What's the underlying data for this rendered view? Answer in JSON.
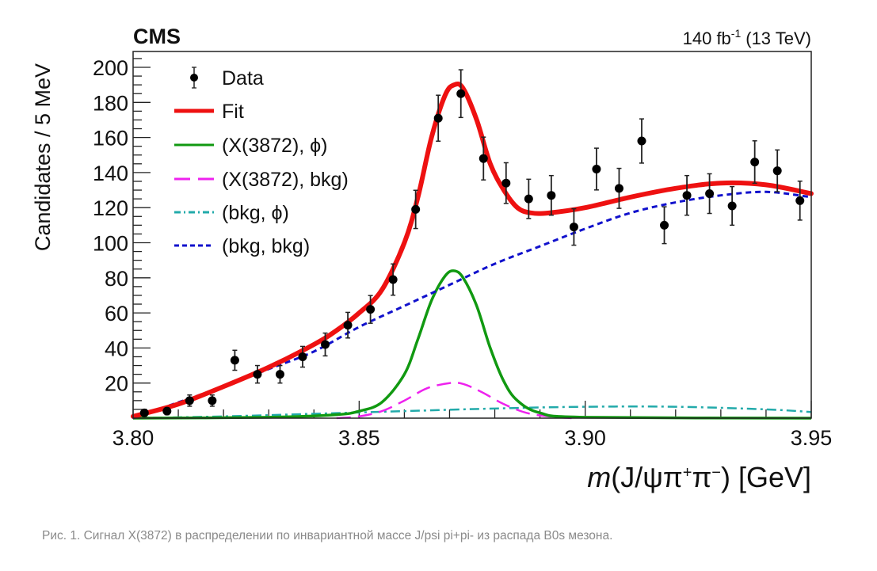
{
  "chart_data": {
    "type": "scatter",
    "experiment_label": "CMS",
    "lumi_label": {
      "value": "140 fb",
      "exponent": "-1",
      "suffix": "(13 TeV)"
    },
    "xlabel": {
      "prefix": "m",
      "body": "(J/ψπ",
      "sup1": "+",
      "mid": "π",
      "sup2": "−",
      "suffix": ") [GeV]"
    },
    "ylabel": "Candidates / 5 MeV",
    "xlim": [
      3.8,
      3.95
    ],
    "ylim": [
      0,
      210
    ],
    "x_ticks": [
      3.8,
      3.85,
      3.9,
      3.95
    ],
    "x_tick_labels": [
      "3.80",
      "3.85",
      "3.90",
      "3.95"
    ],
    "y_ticks": [
      20,
      40,
      60,
      80,
      100,
      120,
      140,
      160,
      180,
      200
    ],
    "y_tick_labels": [
      "20",
      "40",
      "60",
      "80",
      "100",
      "120",
      "140",
      "160",
      "180",
      "200"
    ],
    "grid": false,
    "legend_position": "top-left",
    "legend": [
      {
        "label": "Data",
        "style": "marker",
        "color": "#000000"
      },
      {
        "label": "Fit",
        "style": "solid-thick",
        "color": "#ee1111"
      },
      {
        "label": "(X(3872), ϕ)",
        "style": "solid",
        "color": "#119911"
      },
      {
        "label": "(X(3872), bkg)",
        "style": "long-dash",
        "color": "#ee22ee"
      },
      {
        "label": "(bkg, ϕ)",
        "style": "dash-dot",
        "color": "#22aaaa"
      },
      {
        "label": "(bkg, bkg)",
        "style": "short-dash",
        "color": "#1111cc"
      }
    ],
    "data": {
      "x": [
        3.8025,
        3.8075,
        3.8125,
        3.8175,
        3.8225,
        3.8275,
        3.8325,
        3.8375,
        3.8425,
        3.8475,
        3.8525,
        3.8575,
        3.8625,
        3.8675,
        3.8725,
        3.8775,
        3.8825,
        3.8875,
        3.8925,
        3.8975,
        3.9025,
        3.9075,
        3.9125,
        3.9175,
        3.9225,
        3.9275,
        3.9325,
        3.9375,
        3.9425,
        3.9475
      ],
      "y": [
        3,
        4,
        10,
        10,
        33,
        25,
        25,
        35,
        42,
        53,
        62,
        79,
        119,
        171,
        185,
        148,
        134,
        125,
        127,
        109,
        142,
        131,
        158,
        110,
        127,
        128,
        121,
        146,
        141,
        124
      ],
      "yerr": [
        2,
        2,
        3.2,
        3.2,
        5.7,
        5,
        5,
        5.9,
        6.5,
        7.3,
        7.9,
        8.9,
        10.9,
        13.1,
        13.6,
        12.2,
        11.6,
        11.2,
        11.3,
        10.4,
        11.9,
        11.4,
        12.6,
        10.5,
        11.3,
        11.3,
        11,
        12.1,
        11.9,
        11.1
      ]
    },
    "components": {
      "fit": {
        "x": [
          3.8,
          3.81,
          3.82,
          3.83,
          3.84,
          3.845,
          3.85,
          3.855,
          3.86,
          3.863,
          3.866,
          3.869,
          3.871,
          3.873,
          3.876,
          3.879,
          3.882,
          3.885,
          3.888,
          3.892,
          3.9,
          3.91,
          3.92,
          3.93,
          3.94,
          3.95
        ],
        "y": [
          1,
          8,
          18,
          29,
          42,
          50,
          60,
          73,
          100,
          126,
          160,
          184,
          190,
          188,
          170,
          145,
          130,
          120,
          117,
          117,
          120,
          126,
          131,
          134,
          133,
          128
        ]
      },
      "x3872_phi": {
        "x": [
          3.8,
          3.83,
          3.845,
          3.85,
          3.855,
          3.86,
          3.863,
          3.866,
          3.869,
          3.871,
          3.873,
          3.876,
          3.879,
          3.882,
          3.885,
          3.89,
          3.9,
          3.95
        ],
        "y": [
          0,
          0.5,
          2,
          4,
          9,
          25,
          45,
          67,
          81,
          84,
          80,
          64,
          40,
          21,
          10,
          3,
          0.5,
          0
        ]
      },
      "x3872_bkg": {
        "x": [
          3.845,
          3.85,
          3.855,
          3.86,
          3.865,
          3.87,
          3.873,
          3.877,
          3.882,
          3.887,
          3.892,
          3.897
        ],
        "y": [
          0,
          1,
          4,
          10,
          17,
          20,
          19.5,
          15,
          8,
          3,
          1,
          0
        ]
      },
      "bkg_phi": {
        "x": [
          3.8,
          3.82,
          3.84,
          3.86,
          3.88,
          3.9,
          3.92,
          3.94,
          3.95
        ],
        "y": [
          0,
          1,
          2.5,
          4,
          5.5,
          6.5,
          6.5,
          5,
          3.5
        ]
      },
      "bkg_bkg": {
        "x": [
          3.8,
          3.81,
          3.82,
          3.83,
          3.84,
          3.85,
          3.86,
          3.87,
          3.88,
          3.89,
          3.9,
          3.91,
          3.92,
          3.93,
          3.94,
          3.95
        ],
        "y": [
          0,
          9,
          18,
          28,
          38,
          52,
          64,
          76,
          88,
          98,
          108,
          117,
          123,
          127,
          129,
          126
        ]
      }
    }
  },
  "caption": "Рис. 1. Сигнал X(3872) в распределении по инвариантной массе J/psi pi+pi- из распада B0s мезона."
}
